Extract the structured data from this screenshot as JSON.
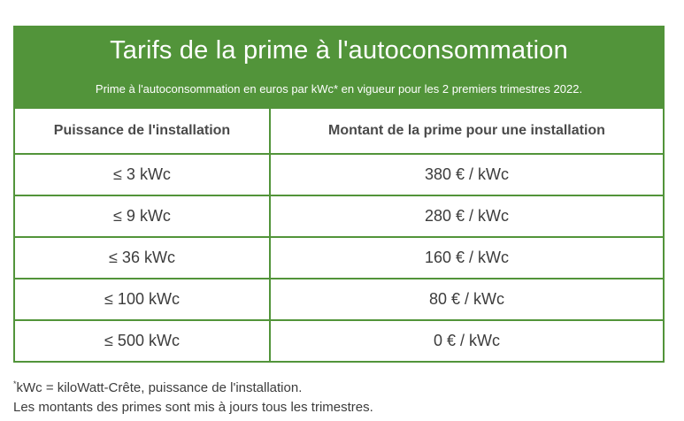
{
  "header": {
    "title": "Tarifs de la prime à l'autoconsommation",
    "subtitle": "Prime à l'autoconsommation en euros par kWc* en vigueur pour les 2 premiers trimestres 2022."
  },
  "table": {
    "columns": [
      "Puissance de l'installation",
      "Montant de la prime pour une installation"
    ],
    "rows": [
      {
        "power": "≤ 3 kWc",
        "amount": "380 € / kWc"
      },
      {
        "power": "≤ 9 kWc",
        "amount": "280 € / kWc"
      },
      {
        "power": "≤ 36 kWc",
        "amount": "160 € / kWc"
      },
      {
        "power": "≤ 100 kWc",
        "amount": "80 € / kWc"
      },
      {
        "power": "≤ 500 kWc",
        "amount": "0 € / kWc"
      }
    ]
  },
  "footnote": {
    "marker": "*",
    "line1": "kWc = kiloWatt-Crête, puissance de l'installation.",
    "line2": "Les montants des primes sont mis à jours tous les trimestres."
  },
  "colors": {
    "accent": "#52943a",
    "text": "#3c3c3c"
  }
}
